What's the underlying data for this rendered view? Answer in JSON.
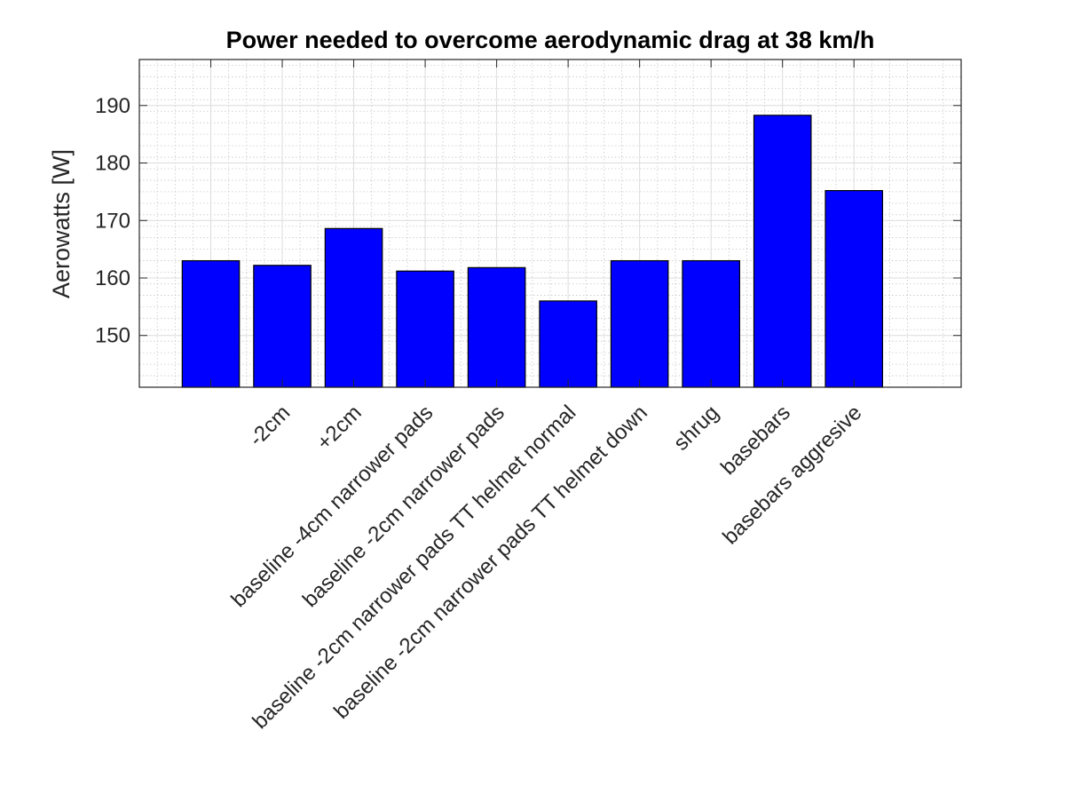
{
  "chart_data": {
    "type": "bar",
    "title": "Power needed to overcome aerodynamic drag at 38 km/h",
    "xlabel": "",
    "ylabel": "Aerowatts [W]",
    "categories": [
      "",
      "-2cm",
      "+2cm",
      "baseline -4cm narrower pads",
      "baseline -2cm narrower pads",
      "baseline -2cm narrower pads TT helmet normal",
      "baseline -2cm narrower pads TT helmet down",
      "shrug",
      "basebars",
      "basebars aggresive"
    ],
    "values": [
      163.0,
      162.2,
      168.6,
      161.2,
      161.8,
      156.0,
      163.0,
      163.0,
      188.3,
      175.2
    ],
    "ylim": [
      141,
      198
    ],
    "yticks": [
      150,
      160,
      170,
      180,
      190
    ],
    "xlim": [
      0,
      11.5
    ],
    "grid": "on",
    "bar_color": "#0000ff"
  }
}
